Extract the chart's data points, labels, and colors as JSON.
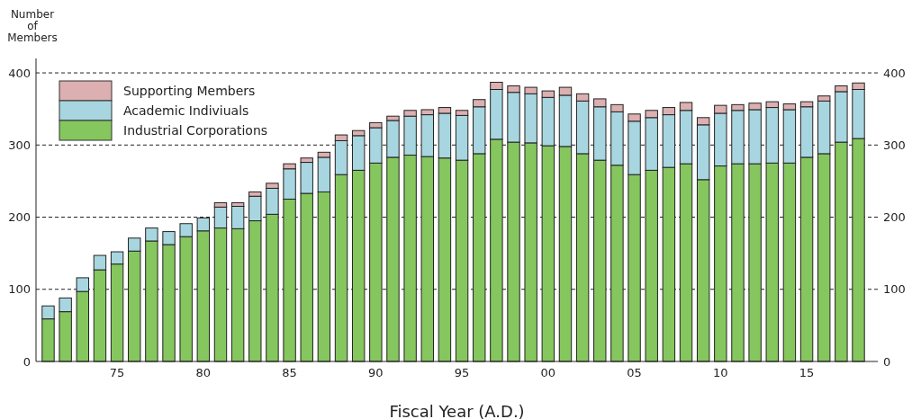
{
  "chart_data": {
    "type": "bar",
    "stacked": true,
    "xlabel": "Fiscal Year (A.D.)",
    "ylabel": "Number of Members",
    "categories": [
      null,
      null,
      null,
      null,
      "75",
      null,
      null,
      null,
      null,
      "80",
      null,
      null,
      null,
      null,
      "85",
      null,
      null,
      null,
      null,
      "90",
      null,
      null,
      null,
      null,
      "95",
      null,
      null,
      null,
      null,
      "00",
      null,
      null,
      null,
      null,
      "05",
      null,
      null,
      null,
      null,
      "10",
      null,
      null,
      null,
      null,
      "15",
      null,
      null,
      null
    ],
    "series": [
      {
        "name": "Industrial Corporations",
        "color": "#86c65e",
        "values": [
          59,
          69,
          97,
          127,
          135,
          153,
          167,
          162,
          173,
          181,
          185,
          184,
          195,
          204,
          225,
          233,
          235,
          259,
          265,
          275,
          283,
          286,
          284,
          282,
          279,
          288,
          308,
          304,
          303,
          299,
          298,
          288,
          279,
          272,
          259,
          265,
          269,
          274,
          252,
          271,
          274,
          274,
          275,
          275,
          283,
          288,
          304,
          309
        ]
      },
      {
        "name": "Academic Indiviuals",
        "color": "#a8d6e0",
        "values": [
          18,
          19,
          19,
          20,
          17,
          18,
          18,
          18,
          18,
          18,
          29,
          31,
          34,
          36,
          42,
          43,
          48,
          47,
          48,
          49,
          51,
          54,
          58,
          62,
          62,
          65,
          69,
          69,
          68,
          67,
          71,
          73,
          74,
          74,
          74,
          73,
          73,
          74,
          76,
          73,
          74,
          75,
          77,
          74,
          70,
          73,
          70,
          68
        ]
      },
      {
        "name": "Supporting Members",
        "color": "#dcafb1",
        "values": [
          null,
          null,
          null,
          null,
          null,
          null,
          null,
          null,
          null,
          null,
          6,
          5,
          6,
          7,
          7,
          6,
          7,
          8,
          7,
          7,
          6,
          8,
          7,
          8,
          7,
          10,
          10,
          9,
          9,
          9,
          11,
          10,
          11,
          10,
          10,
          10,
          10,
          11,
          10,
          11,
          8,
          9,
          8,
          8,
          7,
          7,
          8,
          9
        ]
      }
    ],
    "ylim": [
      0,
      420
    ],
    "yticks": [
      0,
      100,
      200,
      300,
      400
    ],
    "y2lim": [
      0,
      420
    ],
    "y2ticks": [
      0,
      100,
      200,
      300,
      400
    ],
    "grid": "y",
    "legend": "top left"
  }
}
